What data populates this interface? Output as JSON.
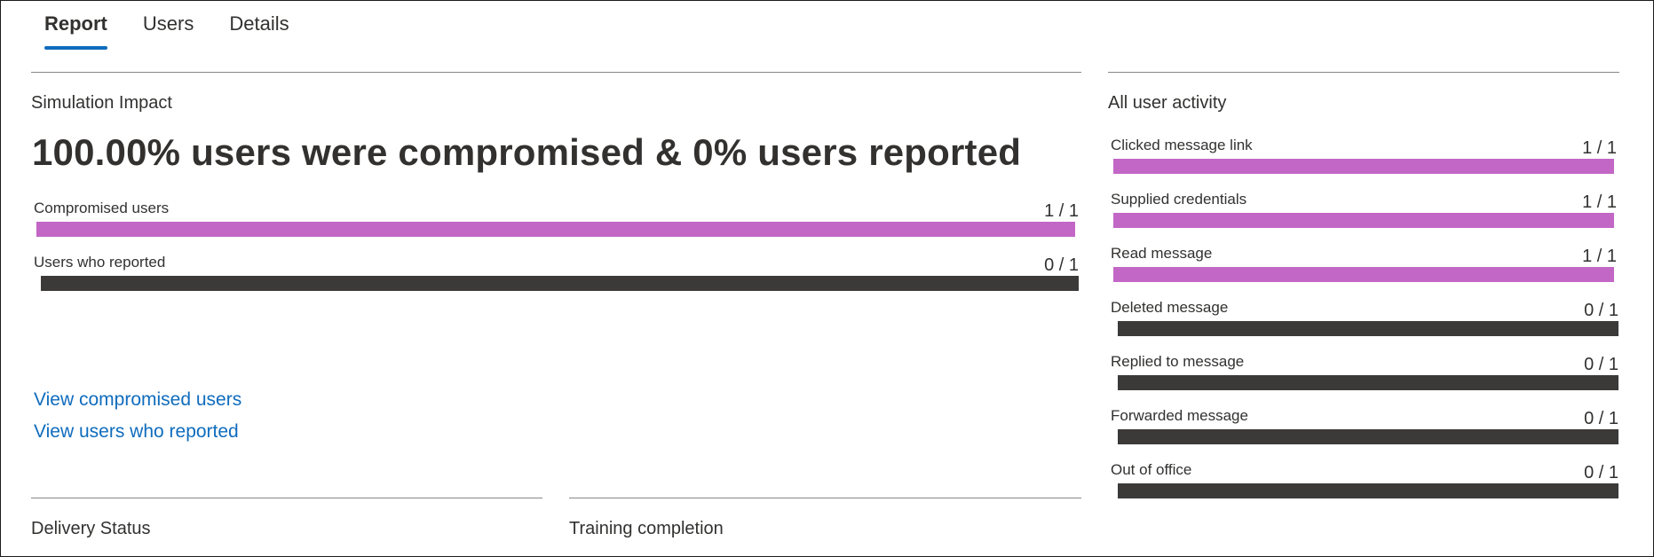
{
  "tabs": [
    "Report",
    "Users",
    "Details"
  ],
  "impact": {
    "title": "Simulation Impact",
    "headline": "100.00% users were compromised & 0% users reported",
    "metrics": [
      {
        "label": "Compromised users",
        "count": "1 / 1",
        "value": 1,
        "total": 1,
        "color": "#c267c6"
      },
      {
        "label": "Users who reported",
        "count": "0 / 1",
        "value": 0,
        "total": 1,
        "color": "#3b3a39"
      }
    ],
    "links": [
      "View compromised users",
      "View users who reported"
    ]
  },
  "activity": {
    "title": "All user activity",
    "items": [
      {
        "label": "Clicked message link",
        "count": "1 / 1",
        "value": 1,
        "total": 1,
        "color": "#c267c6"
      },
      {
        "label": "Supplied credentials",
        "count": "1 / 1",
        "value": 1,
        "total": 1,
        "color": "#c267c6"
      },
      {
        "label": "Read message",
        "count": "1 / 1",
        "value": 1,
        "total": 1,
        "color": "#c267c6"
      },
      {
        "label": "Deleted message",
        "count": "0 / 1",
        "value": 0,
        "total": 1,
        "color": "#3b3a39"
      },
      {
        "label": "Replied to message",
        "count": "0 / 1",
        "value": 0,
        "total": 1,
        "color": "#3b3a39"
      },
      {
        "label": "Forwarded message",
        "count": "0 / 1",
        "value": 0,
        "total": 1,
        "color": "#3b3a39"
      },
      {
        "label": "Out of office",
        "count": "0 / 1",
        "value": 0,
        "total": 1,
        "color": "#3b3a39"
      }
    ]
  },
  "sections": {
    "delivery_status": "Delivery Status",
    "training_completion": "Training completion"
  }
}
